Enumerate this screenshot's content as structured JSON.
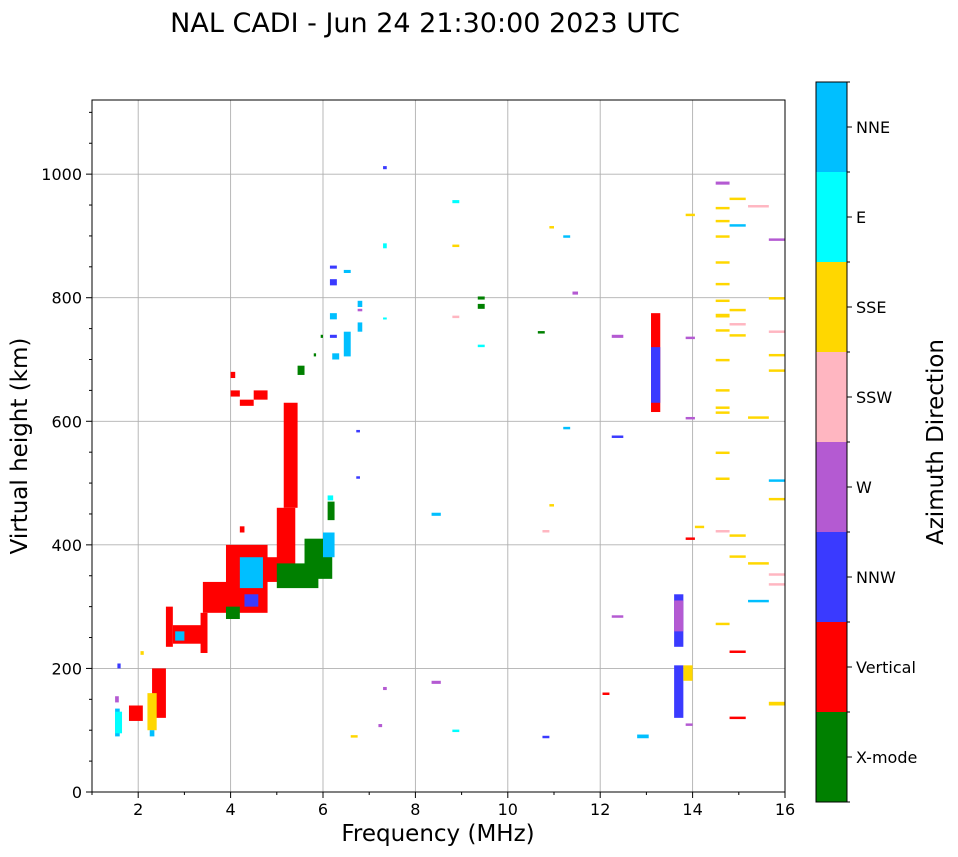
{
  "chart_data": {
    "type": "scatter",
    "title": "NAL CADI - Jun 24 21:30:00 2023 UTC",
    "xlabel": "Frequency (MHz)",
    "ylabel": "Virtual height (km)",
    "xlim": [
      1.0,
      16.0
    ],
    "ylim": [
      0,
      1120
    ],
    "xticks": [
      2,
      4,
      6,
      8,
      10,
      12,
      14,
      16
    ],
    "yticks": [
      0,
      200,
      400,
      600,
      800,
      1000
    ],
    "grid": true,
    "colorbar": {
      "title": "Azimuth Direction",
      "categories": [
        {
          "label": "X-mode",
          "color": "#008000"
        },
        {
          "label": "Vertical",
          "color": "#ff0000"
        },
        {
          "label": "NNW",
          "color": "#3a3aff"
        },
        {
          "label": "W",
          "color": "#b45ad2"
        },
        {
          "label": "SSW",
          "color": "#ffb6c1"
        },
        {
          "label": "SSE",
          "color": "#ffd700"
        },
        {
          "label": "E",
          "color": "#00ffff"
        },
        {
          "label": "NNE",
          "color": "#00bfff"
        }
      ]
    },
    "segments": [
      {
        "c": "Vertical",
        "x0": 1.8,
        "x1": 2.1,
        "y0": 115,
        "y1": 140
      },
      {
        "c": "NNE",
        "x0": 1.5,
        "x1": 1.6,
        "y0": 90,
        "y1": 135
      },
      {
        "c": "E",
        "x0": 1.5,
        "x1": 1.65,
        "y0": 95,
        "y1": 130
      },
      {
        "c": "NNW",
        "x0": 1.55,
        "x1": 1.62,
        "y0": 200,
        "y1": 208
      },
      {
        "c": "W",
        "x0": 1.5,
        "x1": 1.58,
        "y0": 145,
        "y1": 155
      },
      {
        "c": "SSE",
        "x0": 2.05,
        "x1": 2.12,
        "y0": 222,
        "y1": 228
      },
      {
        "c": "Vertical",
        "x0": 2.3,
        "x1": 2.6,
        "y0": 120,
        "y1": 200
      },
      {
        "c": "SSE",
        "x0": 2.2,
        "x1": 2.4,
        "y0": 100,
        "y1": 160
      },
      {
        "c": "NNE",
        "x0": 2.25,
        "x1": 2.35,
        "y0": 90,
        "y1": 100
      },
      {
        "c": "Vertical",
        "x0": 2.6,
        "x1": 2.75,
        "y0": 235,
        "y1": 300
      },
      {
        "c": "Vertical",
        "x0": 2.75,
        "x1": 3.4,
        "y0": 240,
        "y1": 270
      },
      {
        "c": "NNE",
        "x0": 2.8,
        "x1": 3.0,
        "y0": 245,
        "y1": 260
      },
      {
        "c": "Vertical",
        "x0": 3.35,
        "x1": 3.5,
        "y0": 225,
        "y1": 290
      },
      {
        "c": "Vertical",
        "x0": 3.4,
        "x1": 4.0,
        "y0": 290,
        "y1": 340
      },
      {
        "c": "Vertical",
        "x0": 3.9,
        "x1": 4.8,
        "y0": 290,
        "y1": 400
      },
      {
        "c": "Vertical",
        "x0": 4.0,
        "x1": 4.2,
        "y0": 640,
        "y1": 650
      },
      {
        "c": "Vertical",
        "x0": 4.2,
        "x1": 4.5,
        "y0": 625,
        "y1": 635
      },
      {
        "c": "Vertical",
        "x0": 4.5,
        "x1": 4.8,
        "y0": 635,
        "y1": 650
      },
      {
        "c": "Vertical",
        "x0": 4.0,
        "x1": 4.1,
        "y0": 670,
        "y1": 680
      },
      {
        "c": "Vertical",
        "x0": 4.2,
        "x1": 4.3,
        "y0": 420,
        "y1": 430
      },
      {
        "c": "X-mode",
        "x0": 3.9,
        "x1": 4.2,
        "y0": 280,
        "y1": 300
      },
      {
        "c": "NNE",
        "x0": 4.2,
        "x1": 4.7,
        "y0": 330,
        "y1": 380
      },
      {
        "c": "NNW",
        "x0": 4.3,
        "x1": 4.6,
        "y0": 300,
        "y1": 320
      },
      {
        "c": "Vertical",
        "x0": 5.0,
        "x1": 5.4,
        "y0": 360,
        "y1": 460
      },
      {
        "c": "Vertical",
        "x0": 5.15,
        "x1": 5.45,
        "y0": 460,
        "y1": 630
      },
      {
        "c": "Vertical",
        "x0": 4.75,
        "x1": 5.2,
        "y0": 340,
        "y1": 380
      },
      {
        "c": "X-mode",
        "x0": 5.0,
        "x1": 5.9,
        "y0": 330,
        "y1": 370
      },
      {
        "c": "X-mode",
        "x0": 5.6,
        "x1": 6.2,
        "y0": 345,
        "y1": 410
      },
      {
        "c": "NNE",
        "x0": 6.0,
        "x1": 6.25,
        "y0": 380,
        "y1": 420
      },
      {
        "c": "X-mode",
        "x0": 6.1,
        "x1": 6.25,
        "y0": 440,
        "y1": 470
      },
      {
        "c": "E",
        "x0": 6.1,
        "x1": 6.22,
        "y0": 472,
        "y1": 480
      },
      {
        "c": "X-mode",
        "x0": 5.45,
        "x1": 5.6,
        "y0": 675,
        "y1": 690
      },
      {
        "c": "X-mode",
        "x0": 5.8,
        "x1": 5.85,
        "y0": 705,
        "y1": 710
      },
      {
        "c": "X-mode",
        "x0": 5.95,
        "x1": 6.0,
        "y0": 735,
        "y1": 740
      },
      {
        "c": "NNE",
        "x0": 6.2,
        "x1": 6.35,
        "y0": 700,
        "y1": 710
      },
      {
        "c": "NNE",
        "x0": 6.45,
        "x1": 6.6,
        "y0": 705,
        "y1": 745
      },
      {
        "c": "NNE",
        "x0": 6.75,
        "x1": 6.85,
        "y0": 745,
        "y1": 760
      },
      {
        "c": "NNE",
        "x0": 6.15,
        "x1": 6.3,
        "y0": 765,
        "y1": 775
      },
      {
        "c": "NNW",
        "x0": 6.15,
        "x1": 6.3,
        "y0": 820,
        "y1": 830
      },
      {
        "c": "NNE",
        "x0": 6.45,
        "x1": 6.6,
        "y0": 840,
        "y1": 845
      },
      {
        "c": "NNW",
        "x0": 6.15,
        "x1": 6.3,
        "y0": 847,
        "y1": 852
      },
      {
        "c": "NNE",
        "x0": 6.75,
        "x1": 6.85,
        "y0": 785,
        "y1": 795
      },
      {
        "c": "W",
        "x0": 6.75,
        "x1": 6.85,
        "y0": 778,
        "y1": 782
      },
      {
        "c": "NNW",
        "x0": 6.15,
        "x1": 6.3,
        "y0": 735,
        "y1": 740
      },
      {
        "c": "NNW",
        "x0": 6.72,
        "x1": 6.8,
        "y0": 582,
        "y1": 586
      },
      {
        "c": "NNW",
        "x0": 6.72,
        "x1": 6.8,
        "y0": 507,
        "y1": 511
      },
      {
        "c": "SSE",
        "x0": 6.6,
        "x1": 6.75,
        "y0": 88,
        "y1": 92
      },
      {
        "c": "W",
        "x0": 7.3,
        "x1": 7.38,
        "y0": 165,
        "y1": 170
      },
      {
        "c": "W",
        "x0": 7.2,
        "x1": 7.28,
        "y0": 105,
        "y1": 110
      },
      {
        "c": "NNW",
        "x0": 7.3,
        "x1": 7.38,
        "y0": 1008,
        "y1": 1013
      },
      {
        "c": "E",
        "x0": 7.3,
        "x1": 7.38,
        "y0": 880,
        "y1": 888
      },
      {
        "c": "E",
        "x0": 7.3,
        "x1": 7.38,
        "y0": 765,
        "y1": 768
      },
      {
        "c": "NNE",
        "x0": 8.35,
        "x1": 8.55,
        "y0": 447,
        "y1": 452
      },
      {
        "c": "W",
        "x0": 8.35,
        "x1": 8.55,
        "y0": 175,
        "y1": 180
      },
      {
        "c": "E",
        "x0": 8.8,
        "x1": 8.95,
        "y0": 97,
        "y1": 101
      },
      {
        "c": "E",
        "x0": 8.8,
        "x1": 8.95,
        "y0": 953,
        "y1": 958
      },
      {
        "c": "SSE",
        "x0": 8.8,
        "x1": 8.95,
        "y0": 882,
        "y1": 886
      },
      {
        "c": "SSW",
        "x0": 8.8,
        "x1": 8.95,
        "y0": 767,
        "y1": 771
      },
      {
        "c": "X-mode",
        "x0": 9.35,
        "x1": 9.5,
        "y0": 797,
        "y1": 802
      },
      {
        "c": "X-mode",
        "x0": 9.35,
        "x1": 9.5,
        "y0": 782,
        "y1": 790
      },
      {
        "c": "E",
        "x0": 9.35,
        "x1": 9.5,
        "y0": 720,
        "y1": 724
      },
      {
        "c": "X-mode",
        "x0": 10.65,
        "x1": 10.8,
        "y0": 742,
        "y1": 746
      },
      {
        "c": "NNW",
        "x0": 10.75,
        "x1": 10.9,
        "y0": 87,
        "y1": 91
      },
      {
        "c": "SSW",
        "x0": 10.75,
        "x1": 10.9,
        "y0": 420,
        "y1": 424
      },
      {
        "c": "SSE",
        "x0": 10.9,
        "x1": 11.0,
        "y0": 462,
        "y1": 466
      },
      {
        "c": "SSE",
        "x0": 10.9,
        "x1": 11.0,
        "y0": 912,
        "y1": 916
      },
      {
        "c": "NNE",
        "x0": 11.2,
        "x1": 11.35,
        "y0": 587,
        "y1": 591
      },
      {
        "c": "NNE",
        "x0": 11.2,
        "x1": 11.35,
        "y0": 897,
        "y1": 901
      },
      {
        "c": "W",
        "x0": 11.4,
        "x1": 11.52,
        "y0": 805,
        "y1": 810
      },
      {
        "c": "Vertical",
        "x0": 12.05,
        "x1": 12.2,
        "y0": 157,
        "y1": 161
      },
      {
        "c": "W",
        "x0": 12.25,
        "x1": 12.5,
        "y0": 282,
        "y1": 286
      },
      {
        "c": "NNW",
        "x0": 12.25,
        "x1": 12.5,
        "y0": 573,
        "y1": 577
      },
      {
        "c": "W",
        "x0": 12.25,
        "x1": 12.5,
        "y0": 735,
        "y1": 740
      },
      {
        "c": "NNE",
        "x0": 12.8,
        "x1": 13.05,
        "y0": 87,
        "y1": 93
      },
      {
        "c": "Vertical",
        "x0": 13.1,
        "x1": 13.3,
        "y0": 615,
        "y1": 775
      },
      {
        "c": "NNW",
        "x0": 13.1,
        "x1": 13.3,
        "y0": 630,
        "y1": 720
      },
      {
        "c": "NNW",
        "x0": 13.6,
        "x1": 13.8,
        "y0": 120,
        "y1": 205
      },
      {
        "c": "NNW",
        "x0": 13.6,
        "x1": 13.8,
        "y0": 235,
        "y1": 320
      },
      {
        "c": "W",
        "x0": 13.6,
        "x1": 13.8,
        "y0": 260,
        "y1": 310
      },
      {
        "c": "SSE",
        "x0": 13.8,
        "x1": 14.0,
        "y0": 180,
        "y1": 205
      },
      {
        "c": "W",
        "x0": 13.85,
        "x1": 14.0,
        "y0": 107,
        "y1": 111
      },
      {
        "c": "Vertical",
        "x0": 13.85,
        "x1": 14.05,
        "y0": 408,
        "y1": 412
      },
      {
        "c": "W",
        "x0": 13.85,
        "x1": 14.05,
        "y0": 603,
        "y1": 607
      },
      {
        "c": "W",
        "x0": 13.85,
        "x1": 14.05,
        "y0": 733,
        "y1": 737
      },
      {
        "c": "SSE",
        "x0": 13.85,
        "x1": 14.05,
        "y0": 932,
        "y1": 936
      },
      {
        "c": "SSE",
        "x0": 14.05,
        "x1": 14.25,
        "y0": 427,
        "y1": 431
      },
      {
        "c": "W",
        "x0": 14.5,
        "x1": 14.8,
        "y0": 983,
        "y1": 988
      },
      {
        "c": "SSE",
        "x0": 14.5,
        "x1": 14.8,
        "y0": 943,
        "y1": 947
      },
      {
        "c": "SSE",
        "x0": 14.5,
        "x1": 14.8,
        "y0": 922,
        "y1": 926
      },
      {
        "c": "SSE",
        "x0": 14.5,
        "x1": 14.8,
        "y0": 897,
        "y1": 901
      },
      {
        "c": "SSE",
        "x0": 14.5,
        "x1": 14.8,
        "y0": 855,
        "y1": 859
      },
      {
        "c": "SSE",
        "x0": 14.5,
        "x1": 14.8,
        "y0": 820,
        "y1": 824
      },
      {
        "c": "SSE",
        "x0": 14.5,
        "x1": 14.8,
        "y0": 793,
        "y1": 797
      },
      {
        "c": "SSE",
        "x0": 14.5,
        "x1": 14.8,
        "y0": 768,
        "y1": 774
      },
      {
        "c": "SSE",
        "x0": 14.5,
        "x1": 14.8,
        "y0": 745,
        "y1": 749
      },
      {
        "c": "SSE",
        "x0": 14.5,
        "x1": 14.8,
        "y0": 697,
        "y1": 701
      },
      {
        "c": "SSE",
        "x0": 14.5,
        "x1": 14.8,
        "y0": 648,
        "y1": 652
      },
      {
        "c": "SSE",
        "x0": 14.5,
        "x1": 14.8,
        "y0": 620,
        "y1": 624
      },
      {
        "c": "SSE",
        "x0": 14.5,
        "x1": 14.8,
        "y0": 612,
        "y1": 616
      },
      {
        "c": "SSE",
        "x0": 14.5,
        "x1": 14.8,
        "y0": 547,
        "y1": 551
      },
      {
        "c": "SSE",
        "x0": 14.5,
        "x1": 14.8,
        "y0": 505,
        "y1": 509
      },
      {
        "c": "SSW",
        "x0": 14.5,
        "x1": 14.8,
        "y0": 420,
        "y1": 424
      },
      {
        "c": "SSE",
        "x0": 14.5,
        "x1": 14.8,
        "y0": 270,
        "y1": 274
      },
      {
        "c": "SSE",
        "x0": 14.8,
        "x1": 15.15,
        "y0": 958,
        "y1": 962
      },
      {
        "c": "NNE",
        "x0": 14.8,
        "x1": 15.15,
        "y0": 915,
        "y1": 919
      },
      {
        "c": "SSE",
        "x0": 14.8,
        "x1": 15.15,
        "y0": 778,
        "y1": 782
      },
      {
        "c": "SSW",
        "x0": 14.8,
        "x1": 15.15,
        "y0": 755,
        "y1": 759
      },
      {
        "c": "SSE",
        "x0": 14.8,
        "x1": 15.15,
        "y0": 737,
        "y1": 741
      },
      {
        "c": "SSE",
        "x0": 14.8,
        "x1": 15.15,
        "y0": 413,
        "y1": 417
      },
      {
        "c": "SSE",
        "x0": 14.8,
        "x1": 15.15,
        "y0": 379,
        "y1": 383
      },
      {
        "c": "Vertical",
        "x0": 14.8,
        "x1": 15.15,
        "y0": 225,
        "y1": 229
      },
      {
        "c": "Vertical",
        "x0": 14.8,
        "x1": 15.15,
        "y0": 118,
        "y1": 122
      },
      {
        "c": "SSW",
        "x0": 15.2,
        "x1": 15.65,
        "y0": 946,
        "y1": 950
      },
      {
        "c": "SSE",
        "x0": 15.2,
        "x1": 15.65,
        "y0": 604,
        "y1": 608
      },
      {
        "c": "SSE",
        "x0": 15.2,
        "x1": 15.65,
        "y0": 368,
        "y1": 372
      },
      {
        "c": "NNE",
        "x0": 15.2,
        "x1": 15.65,
        "y0": 307,
        "y1": 311
      },
      {
        "c": "W",
        "x0": 15.65,
        "x1": 16.0,
        "y0": 892,
        "y1": 896
      },
      {
        "c": "SSE",
        "x0": 15.65,
        "x1": 16.0,
        "y0": 797,
        "y1": 801
      },
      {
        "c": "SSW",
        "x0": 15.65,
        "x1": 16.0,
        "y0": 743,
        "y1": 747
      },
      {
        "c": "SSE",
        "x0": 15.65,
        "x1": 16.0,
        "y0": 705,
        "y1": 709
      },
      {
        "c": "SSE",
        "x0": 15.65,
        "x1": 16.0,
        "y0": 680,
        "y1": 684
      },
      {
        "c": "NNE",
        "x0": 15.65,
        "x1": 16.0,
        "y0": 502,
        "y1": 506
      },
      {
        "c": "SSE",
        "x0": 15.65,
        "x1": 16.0,
        "y0": 472,
        "y1": 476
      },
      {
        "c": "SSW",
        "x0": 15.65,
        "x1": 16.0,
        "y0": 350,
        "y1": 354
      },
      {
        "c": "SSW",
        "x0": 15.65,
        "x1": 16.0,
        "y0": 334,
        "y1": 338
      },
      {
        "c": "SSE",
        "x0": 15.65,
        "x1": 16.0,
        "y0": 140,
        "y1": 146
      }
    ]
  }
}
